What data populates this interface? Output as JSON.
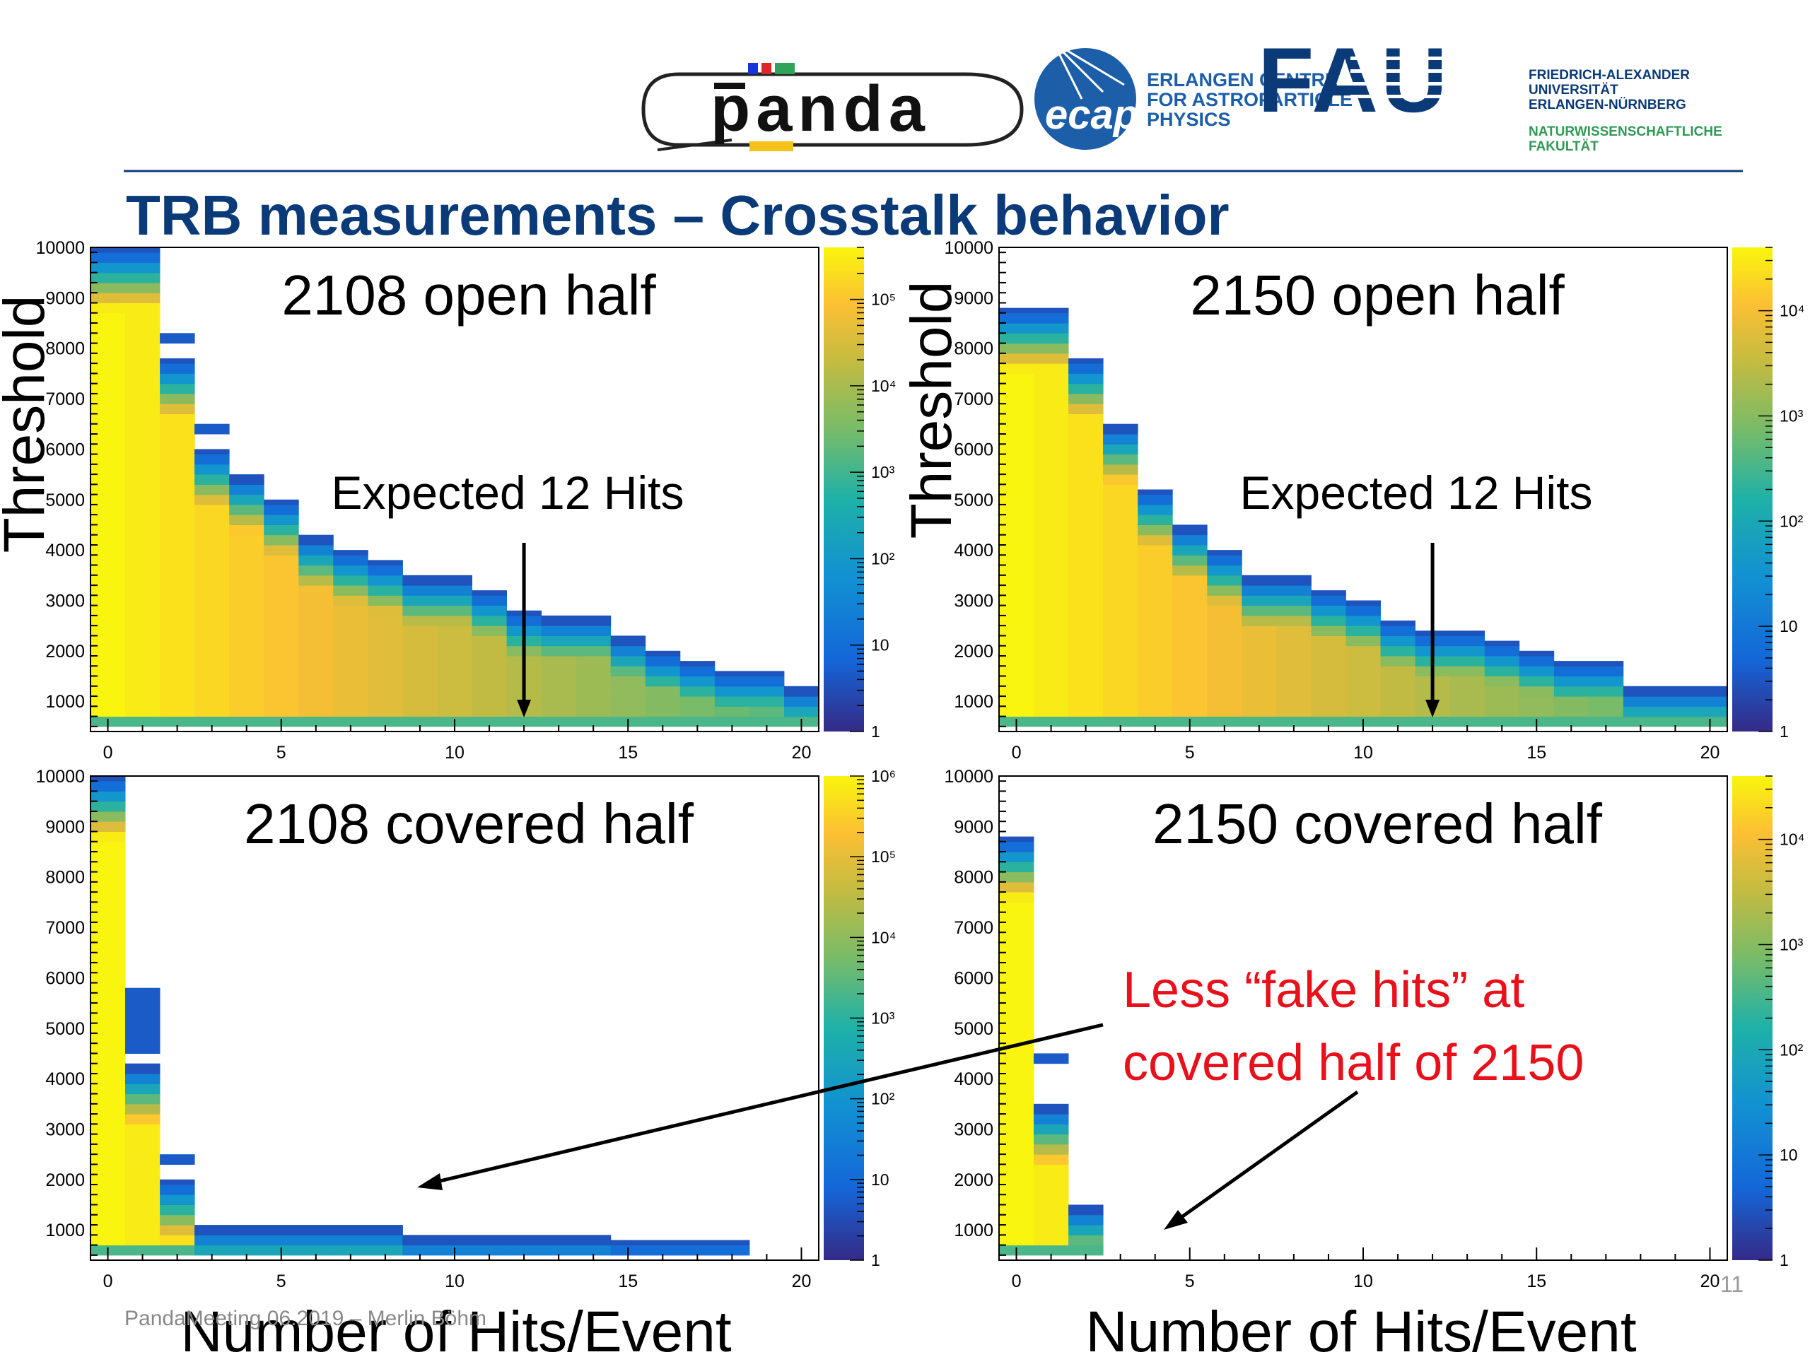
{
  "header": {
    "title": "TRB measurements – Crosstalk behavior",
    "logos": {
      "panda_text": "panda",
      "ecap_text": "ecap",
      "ecap_lines": [
        "ERLANGEN CENTRE",
        "FOR ASTROPARTICLE",
        "PHYSICS"
      ],
      "fau_text": "FAU",
      "fau_lines": [
        "FRIEDRICH-ALEXANDER",
        "UNIVERSITÄT",
        "ERLANGEN-NÜRNBERG"
      ],
      "fau_faculty_lines": [
        "NATURWISSENSCHAFTLICHE",
        "FAKULTÄT"
      ]
    },
    "colors": {
      "title": "#0b3a78",
      "rule": "#0b3a78",
      "fau_blue": "#0b3a78",
      "fau_green": "#2e9a55"
    }
  },
  "axis_titles": {
    "threshold": "Threshold",
    "hits": "Number of Hits/Event"
  },
  "annotations": {
    "expected": "Expected 12 Hits",
    "red_line1": "Less “fake hits” at",
    "red_line2": "covered half of 2150",
    "red_color": "#e8101a"
  },
  "footer": {
    "text": "PandaMeeting 06.2019 – Merlin Böhm",
    "page": "11"
  },
  "chart_data": [
    {
      "type": "heatmap",
      "title": "2108 open half",
      "xlabel": "Number of Hits/Event",
      "ylabel": "Threshold",
      "xlim": [
        -0.5,
        20.5
      ],
      "ylim": [
        400,
        10000
      ],
      "xticks": [
        0,
        5,
        10,
        15,
        20
      ],
      "yticks": [
        1000,
        2000,
        3000,
        4000,
        5000,
        6000,
        7000,
        8000,
        9000,
        10000
      ],
      "zscale": "log",
      "zlim": [
        1,
        400000
      ],
      "z_tick_labels": [
        "1",
        "10",
        "10²",
        "10³",
        "10⁴",
        "10⁵"
      ],
      "z_tick_values": [
        1,
        10,
        100,
        1000,
        10000,
        100000
      ],
      "annotation": "Expected 12 Hits",
      "arrow_x": 12,
      "columns": [
        {
          "x": 0,
          "ymax": 10000
        },
        {
          "x": 1,
          "ymax": 10000
        },
        {
          "x": 2,
          "ymax": 7800,
          "extra_band": [
            8100,
            8300
          ]
        },
        {
          "x": 3,
          "ymax": 6000,
          "extra_band": [
            6300,
            6500
          ]
        },
        {
          "x": 4,
          "ymax": 5500
        },
        {
          "x": 5,
          "ymax": 5000
        },
        {
          "x": 6,
          "ymax": 4300
        },
        {
          "x": 7,
          "ymax": 4000
        },
        {
          "x": 8,
          "ymax": 3800
        },
        {
          "x": 9,
          "ymax": 3500
        },
        {
          "x": 10,
          "ymax": 3500
        },
        {
          "x": 11,
          "ymax": 3200
        },
        {
          "x": 12,
          "ymax": 2800
        },
        {
          "x": 13,
          "ymax": 2700
        },
        {
          "x": 14,
          "ymax": 2700
        },
        {
          "x": 15,
          "ymax": 2300
        },
        {
          "x": 16,
          "ymax": 2000
        },
        {
          "x": 17,
          "ymax": 1800
        },
        {
          "x": 18,
          "ymax": 1600
        },
        {
          "x": 19,
          "ymax": 1600
        },
        {
          "x": 20,
          "ymax": 1300
        }
      ]
    },
    {
      "type": "heatmap",
      "title": "2150 open half",
      "xlabel": "Number of Hits/Event",
      "ylabel": "Threshold",
      "xlim": [
        -0.5,
        20.5
      ],
      "ylim": [
        400,
        10000
      ],
      "xticks": [
        0,
        5,
        10,
        15,
        20
      ],
      "yticks": [
        1000,
        2000,
        3000,
        4000,
        5000,
        6000,
        7000,
        8000,
        9000,
        10000
      ],
      "zscale": "log",
      "zlim": [
        1,
        40000
      ],
      "z_tick_labels": [
        "1",
        "10",
        "10²",
        "10³",
        "10⁴"
      ],
      "z_tick_values": [
        1,
        10,
        100,
        1000,
        10000
      ],
      "annotation": "Expected 12 Hits",
      "arrow_x": 12,
      "columns": [
        {
          "x": 0,
          "ymax": 8800
        },
        {
          "x": 1,
          "ymax": 8800
        },
        {
          "x": 2,
          "ymax": 7800
        },
        {
          "x": 3,
          "ymax": 6500
        },
        {
          "x": 4,
          "ymax": 5200
        },
        {
          "x": 5,
          "ymax": 4500
        },
        {
          "x": 6,
          "ymax": 4000
        },
        {
          "x": 7,
          "ymax": 3500
        },
        {
          "x": 8,
          "ymax": 3500
        },
        {
          "x": 9,
          "ymax": 3200
        },
        {
          "x": 10,
          "ymax": 3000
        },
        {
          "x": 11,
          "ymax": 2600
        },
        {
          "x": 12,
          "ymax": 2400
        },
        {
          "x": 13,
          "ymax": 2400
        },
        {
          "x": 14,
          "ymax": 2200
        },
        {
          "x": 15,
          "ymax": 2000
        },
        {
          "x": 16,
          "ymax": 1800
        },
        {
          "x": 17,
          "ymax": 1800
        },
        {
          "x": 18,
          "ymax": 1300
        },
        {
          "x": 19,
          "ymax": 1300
        },
        {
          "x": 20,
          "ymax": 1300
        }
      ]
    },
    {
      "type": "heatmap",
      "title": "2108 covered half",
      "xlabel": "Number of Hits/Event",
      "ylabel": "Threshold",
      "xlim": [
        -0.5,
        20.5
      ],
      "ylim": [
        400,
        10000
      ],
      "xticks": [
        0,
        5,
        10,
        15,
        20
      ],
      "yticks": [
        1000,
        2000,
        3000,
        4000,
        5000,
        6000,
        7000,
        8000,
        9000,
        10000
      ],
      "zscale": "log",
      "zlim": [
        1,
        1000000
      ],
      "z_tick_labels": [
        "1",
        "10",
        "10²",
        "10³",
        "10⁴",
        "10⁵",
        "10⁶"
      ],
      "z_tick_values": [
        1,
        10,
        100,
        1000,
        10000,
        100000,
        1000000
      ],
      "columns": [
        {
          "x": 0,
          "ymax": 10000
        },
        {
          "x": 1,
          "ymax": 4300,
          "extra_band": [
            4500,
            5800
          ]
        },
        {
          "x": 2,
          "ymax": 2000,
          "extra_band": [
            2300,
            2500
          ]
        },
        {
          "x": 3,
          "ymax": 1100
        },
        {
          "x": 4,
          "ymax": 1100
        },
        {
          "x": 5,
          "ymax": 1100
        },
        {
          "x": 6,
          "ymax": 1100
        },
        {
          "x": 7,
          "ymax": 1100
        },
        {
          "x": 8,
          "ymax": 1100
        },
        {
          "x": 9,
          "ymax": 900
        },
        {
          "x": 10,
          "ymax": 900
        },
        {
          "x": 11,
          "ymax": 900
        },
        {
          "x": 12,
          "ymax": 900
        },
        {
          "x": 13,
          "ymax": 900
        },
        {
          "x": 14,
          "ymax": 900
        },
        {
          "x": 15,
          "ymax": 800
        },
        {
          "x": 16,
          "ymax": 800
        },
        {
          "x": 17,
          "ymax": 800
        },
        {
          "x": 18,
          "ymax": 800
        }
      ]
    },
    {
      "type": "heatmap",
      "title": "2150 covered half",
      "xlabel": "Number of Hits/Event",
      "ylabel": "Threshold",
      "xlim": [
        -0.5,
        20.5
      ],
      "ylim": [
        400,
        10000
      ],
      "xticks": [
        0,
        5,
        10,
        15,
        20
      ],
      "yticks": [
        1000,
        2000,
        3000,
        4000,
        5000,
        6000,
        7000,
        8000,
        9000,
        10000
      ],
      "zscale": "log",
      "zlim": [
        1,
        40000
      ],
      "z_tick_labels": [
        "1",
        "10",
        "10²",
        "10³",
        "10⁴"
      ],
      "z_tick_values": [
        1,
        10,
        100,
        1000,
        10000
      ],
      "columns": [
        {
          "x": 0,
          "ymax": 8800
        },
        {
          "x": 1,
          "ymax": 3500,
          "extra_band": [
            4300,
            4500
          ]
        },
        {
          "x": 2,
          "ymax": 1500
        }
      ]
    }
  ]
}
